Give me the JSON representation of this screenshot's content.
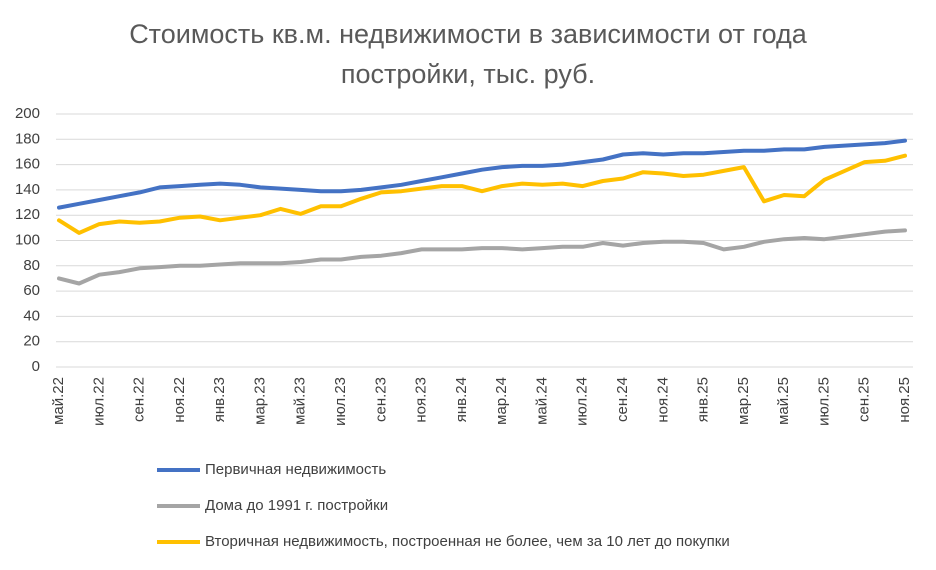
{
  "chart_data": {
    "type": "line",
    "title": "Стоимость кв.м. недвижимости в зависимости от года постройки, тыс. руб.",
    "categories": [
      "май.22",
      null,
      "июл.22",
      null,
      "сен.22",
      null,
      "ноя.22",
      null,
      "янв.23",
      null,
      "мар.23",
      null,
      "май.23",
      null,
      "июл.23",
      null,
      "сен.23",
      null,
      "ноя.23",
      null,
      "янв.24",
      null,
      "мар.24",
      null,
      "май.24",
      null,
      "июл.24",
      null,
      "сен.24",
      null,
      "ноя.24",
      null,
      "янв.25",
      null,
      "мар.25",
      null,
      "май.25",
      null,
      "июл.25",
      null,
      "сен.25",
      null,
      "ноя.25"
    ],
    "series": [
      {
        "name": "Первичная недвижимость",
        "color": "#4472c4",
        "values": [
          126,
          129,
          132,
          135,
          138,
          142,
          143,
          144,
          145,
          144,
          142,
          141,
          140,
          139,
          139,
          140,
          142,
          144,
          147,
          150,
          153,
          156,
          158,
          159,
          159,
          160,
          162,
          164,
          168,
          169,
          168,
          169,
          169,
          170,
          171,
          171,
          172,
          172,
          174,
          175,
          176,
          177,
          179
        ]
      },
      {
        "name": "Дома до 1991 г. постройки",
        "color": "#a5a5a5",
        "values": [
          70,
          66,
          73,
          75,
          78,
          79,
          80,
          80,
          81,
          82,
          82,
          82,
          83,
          85,
          85,
          87,
          88,
          90,
          93,
          93,
          93,
          94,
          94,
          93,
          94,
          95,
          95,
          98,
          96,
          98,
          99,
          99,
          98,
          93,
          95,
          99,
          101,
          102,
          101,
          103,
          105,
          107,
          108
        ]
      },
      {
        "name": "Вторичная недвижимость, построенная не более, чем за 10 лет до покупки",
        "color": "#ffc000",
        "values": [
          116,
          106,
          113,
          115,
          114,
          115,
          118,
          119,
          116,
          118,
          120,
          125,
          121,
          127,
          127,
          133,
          138,
          139,
          141,
          143,
          143,
          139,
          143,
          145,
          144,
          145,
          143,
          147,
          149,
          154,
          153,
          151,
          152,
          155,
          158,
          131,
          136,
          135,
          148,
          155,
          162,
          163,
          167
        ]
      }
    ],
    "ylim": [
      0,
      200
    ],
    "yticks": [
      0,
      20,
      40,
      60,
      80,
      100,
      120,
      140,
      160,
      180,
      200
    ],
    "grid": true
  }
}
